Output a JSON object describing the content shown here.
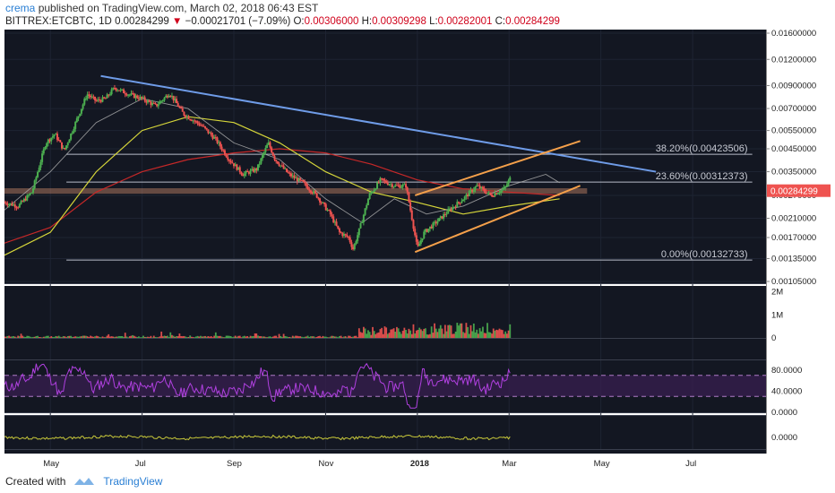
{
  "header": {
    "author": "crema",
    "published_text": "published on TradingView.com, March 02, 2018 06:43 EST",
    "symbol": "BITTREX:ETCBTC, 1D",
    "last": "0.00284299",
    "change_arrow": "▼",
    "change": "−0.00021701 (−7.09%)",
    "open_label": "O:",
    "open": "0.00306000",
    "high_label": "H:",
    "high": "0.00309298",
    "low_label": "L:",
    "low": "0.00282001",
    "close_label": "C:",
    "close": "0.00284299"
  },
  "footer": {
    "created_with": "Created with",
    "brand": "TradingView"
  },
  "colors": {
    "background": "#131722",
    "up_candle": "#4caf50",
    "down_candle": "#ef5350",
    "trendline": "#6f9ce8",
    "channel": "#f5a04a",
    "ma_fast": "#b3b3b3",
    "ma_mid": "#d6d63a",
    "ma_slow": "#c62828",
    "rsi": "#b040e0",
    "rsi_band": "#3a1f52",
    "support_zone": "#c98a6a",
    "price_tag": "#ef5350"
  },
  "chart_data": [
    {
      "type": "candlestick",
      "pane": "price",
      "scale": "log",
      "ylim": [
        0.00105,
        0.016
      ],
      "y_ticks": [
        "0.01600000",
        "0.01200000",
        "0.00900000",
        "0.00700000",
        "0.00550000",
        "0.00450000",
        "0.00350000",
        "0.00270000",
        "0.00210000",
        "0.00170000",
        "0.00135000",
        "0.00105000"
      ],
      "x_ticks": [
        "May",
        "Jul",
        "Sep",
        "Nov",
        "2018",
        "Mar",
        "May",
        "Jul"
      ],
      "x_tick_months": [
        4,
        6,
        8,
        10,
        12,
        14,
        16,
        18
      ],
      "x_range_months": [
        3.0,
        19.6
      ],
      "last_date_month": 14.05,
      "current_price_label": "0.00284299",
      "current_price": 0.00284299,
      "fib_levels": [
        {
          "label": "38.20%(0.00423506)",
          "value": 0.00423506
        },
        {
          "label": "23.60%(0.00312373)",
          "value": 0.00312373
        },
        {
          "label": "0.00%(0.00132733)",
          "value": 0.00132733
        }
      ],
      "trendline": [
        [
          5.1,
          0.01
        ],
        [
          17.2,
          0.0035
        ]
      ],
      "channel_upper": [
        [
          11.95,
          0.0027
        ],
        [
          15.55,
          0.0049
        ]
      ],
      "channel_lower": [
        [
          11.95,
          0.00145
        ],
        [
          15.55,
          0.003
        ]
      ],
      "support_zone": [
        0.00275,
        0.00292
      ],
      "price_path": [
        [
          3.0,
          0.0025
        ],
        [
          3.3,
          0.0024
        ],
        [
          3.6,
          0.0028
        ],
        [
          3.9,
          0.0048
        ],
        [
          4.1,
          0.0053
        ],
        [
          4.3,
          0.0044
        ],
        [
          4.55,
          0.006
        ],
        [
          4.8,
          0.0082
        ],
        [
          5.0,
          0.0076
        ],
        [
          5.2,
          0.0078
        ],
        [
          5.4,
          0.0088
        ],
        [
          5.7,
          0.0082
        ],
        [
          6.0,
          0.0078
        ],
        [
          6.3,
          0.0072
        ],
        [
          6.6,
          0.0083
        ],
        [
          6.9,
          0.0066
        ],
        [
          7.3,
          0.0058
        ],
        [
          7.6,
          0.005
        ],
        [
          7.9,
          0.004
        ],
        [
          8.2,
          0.0034
        ],
        [
          8.5,
          0.0036
        ],
        [
          8.75,
          0.0048
        ],
        [
          8.9,
          0.004
        ],
        [
          9.2,
          0.0034
        ],
        [
          9.5,
          0.0031
        ],
        [
          9.8,
          0.0027
        ],
        [
          10.1,
          0.0022
        ],
        [
          10.3,
          0.0018
        ],
        [
          10.5,
          0.0017
        ],
        [
          10.6,
          0.0015
        ],
        [
          10.75,
          0.0019
        ],
        [
          10.95,
          0.0027
        ],
        [
          11.2,
          0.0032
        ],
        [
          11.5,
          0.003
        ],
        [
          11.75,
          0.003
        ],
        [
          11.9,
          0.002
        ],
        [
          12.0,
          0.0015
        ],
        [
          12.15,
          0.0018
        ],
        [
          12.4,
          0.002
        ],
        [
          12.7,
          0.0023
        ],
        [
          13.0,
          0.0026
        ],
        [
          13.3,
          0.003
        ],
        [
          13.6,
          0.0027
        ],
        [
          13.9,
          0.0029
        ],
        [
          14.1,
          0.0035
        ],
        [
          14.3,
          0.0033
        ],
        [
          14.6,
          0.0037
        ],
        [
          14.8,
          0.0036
        ],
        [
          15.0,
          0.0031
        ],
        [
          15.12,
          0.0028
        ]
      ],
      "ma_fast_path": [
        [
          3.0,
          0.0023
        ],
        [
          4.0,
          0.0035
        ],
        [
          5.0,
          0.006
        ],
        [
          6.0,
          0.0078
        ],
        [
          7.0,
          0.007
        ],
        [
          8.0,
          0.0048
        ],
        [
          9.0,
          0.004
        ],
        [
          10.0,
          0.0026
        ],
        [
          10.8,
          0.002
        ],
        [
          11.5,
          0.0026
        ],
        [
          12.2,
          0.0022
        ],
        [
          13.0,
          0.0024
        ],
        [
          14.0,
          0.003
        ],
        [
          14.8,
          0.0034
        ],
        [
          15.1,
          0.0031
        ]
      ],
      "ma_mid_path": [
        [
          3.0,
          0.0014
        ],
        [
          4.0,
          0.0018
        ],
        [
          5.0,
          0.0035
        ],
        [
          6.0,
          0.0055
        ],
        [
          7.0,
          0.0064
        ],
        [
          8.0,
          0.006
        ],
        [
          9.0,
          0.0048
        ],
        [
          10.0,
          0.0035
        ],
        [
          11.0,
          0.0028
        ],
        [
          12.0,
          0.0025
        ],
        [
          13.0,
          0.0022
        ],
        [
          14.0,
          0.0024
        ],
        [
          15.1,
          0.0026
        ]
      ],
      "ma_slow_path": [
        [
          3.0,
          0.0016
        ],
        [
          4.0,
          0.0019
        ],
        [
          5.0,
          0.0028
        ],
        [
          6.0,
          0.0035
        ],
        [
          7.0,
          0.004
        ],
        [
          8.0,
          0.0043
        ],
        [
          9.0,
          0.0045
        ],
        [
          10.0,
          0.0043
        ],
        [
          11.0,
          0.0038
        ],
        [
          12.0,
          0.0032
        ],
        [
          13.0,
          0.0029
        ],
        [
          14.0,
          0.0028
        ],
        [
          15.1,
          0.0027
        ]
      ]
    },
    {
      "type": "bar",
      "pane": "volume",
      "y_ticks": [
        "2M",
        "1M",
        "0"
      ],
      "ylim": [
        0,
        2100000
      ]
    },
    {
      "type": "line",
      "pane": "rsi",
      "y_ticks": [
        "80.0000",
        "40.0000",
        "0.0000"
      ],
      "ylim": [
        0,
        100
      ],
      "band": [
        30,
        70
      ]
    },
    {
      "type": "line",
      "pane": "indicator",
      "y_ticks": [
        "0.0000"
      ]
    }
  ]
}
